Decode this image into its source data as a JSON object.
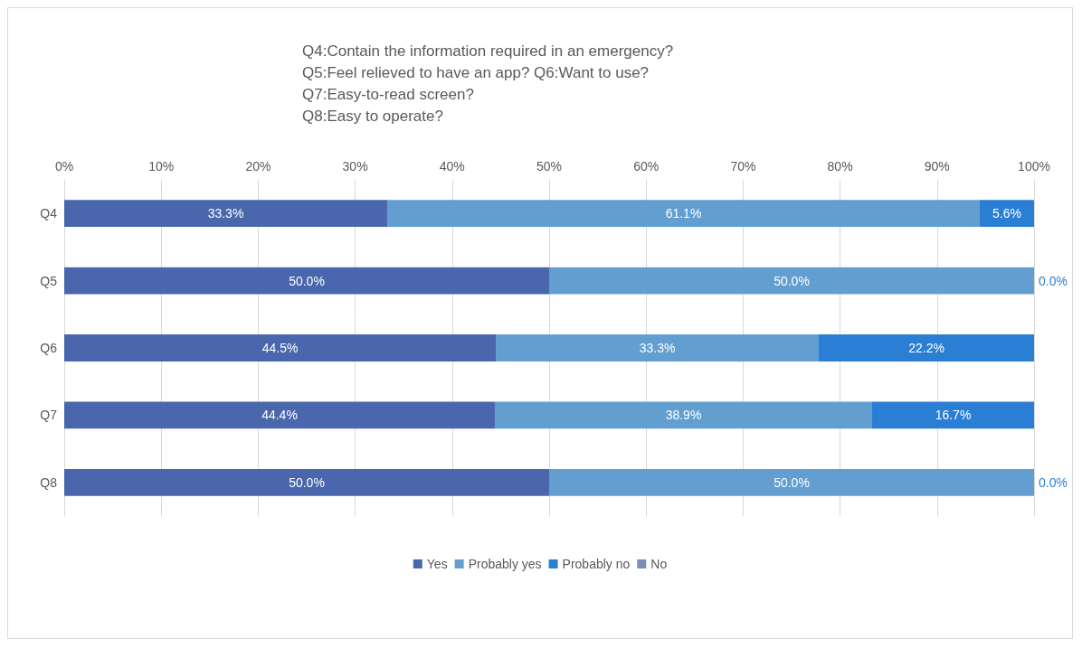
{
  "chart_data": {
    "type": "bar",
    "orientation": "horizontal",
    "stacked": true,
    "title": "Q4:Contain the information required in an emergency?\nQ5:Feel relieved to have an app? Q6:Want to use?\nQ7:Easy-to-read screen?\nQ8:Easy to operate?",
    "categories": [
      "Q4",
      "Q5",
      "Q6",
      "Q7",
      "Q8"
    ],
    "series": [
      {
        "name": "Yes",
        "color": "#4a66ac",
        "values": [
          33.3,
          50.0,
          44.5,
          44.4,
          50.0
        ],
        "value_labels": [
          "33.3%",
          "50.0%",
          "44.5%",
          "44.4%",
          "50.0%"
        ]
      },
      {
        "name": "Probably yes",
        "color": "#629fd0",
        "values": [
          61.1,
          50.0,
          33.3,
          38.9,
          50.0
        ],
        "value_labels": [
          "61.1%",
          "50.0%",
          "33.3%",
          "38.9%",
          "50.0%"
        ]
      },
      {
        "name": "Probably no",
        "color": "#2a7fd5",
        "values": [
          5.6,
          0,
          22.2,
          16.7,
          0
        ],
        "value_labels": [
          "5.6%",
          "0.0%",
          "22.2%",
          "16.7%",
          "0.0%"
        ]
      },
      {
        "name": "No",
        "color": "#7b8fb0",
        "values": [
          0,
          0,
          0,
          0,
          0
        ],
        "value_labels": [
          null,
          null,
          null,
          null,
          null
        ]
      }
    ],
    "xlim": [
      0,
      100
    ],
    "xticks": [
      {
        "value": 0,
        "label": "0%"
      },
      {
        "value": 10,
        "label": "10%"
      },
      {
        "value": 20,
        "label": "20%"
      },
      {
        "value": 30,
        "label": "30%"
      },
      {
        "value": 40,
        "label": "40%"
      },
      {
        "value": 50,
        "label": "50%"
      },
      {
        "value": 60,
        "label": "60%"
      },
      {
        "value": 70,
        "label": "70%"
      },
      {
        "value": 80,
        "label": "80%"
      },
      {
        "value": 90,
        "label": "90%"
      },
      {
        "value": 100,
        "label": "100%"
      }
    ],
    "grid": "x",
    "legend": "bottom"
  }
}
